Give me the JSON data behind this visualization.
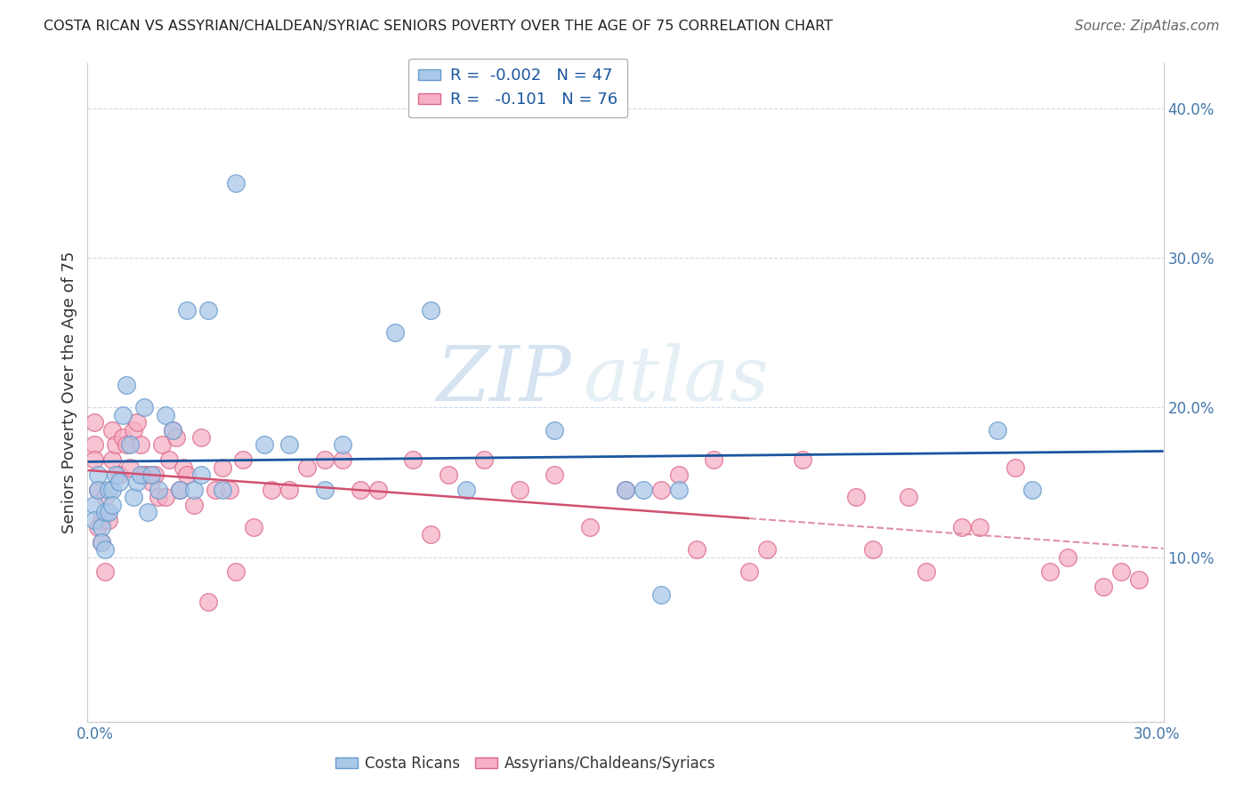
{
  "title": "COSTA RICAN VS ASSYRIAN/CHALDEAN/SYRIAC SENIORS POVERTY OVER THE AGE OF 75 CORRELATION CHART",
  "source": "Source: ZipAtlas.com",
  "ylabel": "Seniors Poverty Over the Age of 75",
  "xlim": [
    -0.002,
    0.302
  ],
  "ylim": [
    -0.01,
    0.43
  ],
  "ytick_positions": [
    0.1,
    0.2,
    0.3,
    0.4
  ],
  "ytick_labels": [
    "10.0%",
    "20.0%",
    "30.0%",
    "40.0%"
  ],
  "xtick_positions": [
    0.0,
    0.3
  ],
  "xtick_labels": [
    "0.0%",
    "30.0%"
  ],
  "legend_text1": "R =  -0.002   N = 47",
  "legend_text2": "R =   -0.101   N = 76",
  "color_blue": "#aac8e8",
  "color_pink": "#f5b0c5",
  "line_blue": "#1a56a0",
  "line_pink": "#d05070",
  "line_pink_dash": "#e090a8",
  "watermark_zip": "ZIP",
  "watermark_atlas": "atlas",
  "grid_color": "#d0d8e8",
  "blue_x": [
    0.0,
    0.0,
    0.001,
    0.001,
    0.002,
    0.002,
    0.003,
    0.003,
    0.004,
    0.004,
    0.005,
    0.005,
    0.006,
    0.007,
    0.008,
    0.009,
    0.01,
    0.011,
    0.012,
    0.013,
    0.014,
    0.015,
    0.016,
    0.018,
    0.02,
    0.022,
    0.024,
    0.026,
    0.028,
    0.03,
    0.032,
    0.036,
    0.04,
    0.048,
    0.055,
    0.065,
    0.07,
    0.085,
    0.095,
    0.105,
    0.13,
    0.15,
    0.155,
    0.16,
    0.165,
    0.255,
    0.265
  ],
  "blue_y": [
    0.135,
    0.125,
    0.155,
    0.145,
    0.12,
    0.11,
    0.13,
    0.105,
    0.13,
    0.145,
    0.145,
    0.135,
    0.155,
    0.15,
    0.195,
    0.215,
    0.175,
    0.14,
    0.15,
    0.155,
    0.2,
    0.13,
    0.155,
    0.145,
    0.195,
    0.185,
    0.145,
    0.265,
    0.145,
    0.155,
    0.265,
    0.145,
    0.35,
    0.175,
    0.175,
    0.145,
    0.175,
    0.25,
    0.265,
    0.145,
    0.185,
    0.145,
    0.145,
    0.075,
    0.145,
    0.185,
    0.145
  ],
  "pink_x": [
    0.0,
    0.0,
    0.0,
    0.001,
    0.001,
    0.002,
    0.002,
    0.003,
    0.003,
    0.004,
    0.005,
    0.005,
    0.006,
    0.007,
    0.008,
    0.009,
    0.01,
    0.011,
    0.012,
    0.013,
    0.014,
    0.015,
    0.016,
    0.017,
    0.018,
    0.019,
    0.02,
    0.021,
    0.022,
    0.023,
    0.024,
    0.025,
    0.026,
    0.028,
    0.03,
    0.032,
    0.034,
    0.036,
    0.038,
    0.04,
    0.042,
    0.045,
    0.05,
    0.055,
    0.06,
    0.065,
    0.07,
    0.075,
    0.08,
    0.09,
    0.095,
    0.1,
    0.11,
    0.12,
    0.13,
    0.14,
    0.15,
    0.16,
    0.165,
    0.17,
    0.175,
    0.185,
    0.19,
    0.2,
    0.215,
    0.22,
    0.23,
    0.235,
    0.245,
    0.25,
    0.26,
    0.27,
    0.275,
    0.285,
    0.29,
    0.295
  ],
  "pink_y": [
    0.19,
    0.175,
    0.165,
    0.145,
    0.12,
    0.125,
    0.11,
    0.14,
    0.09,
    0.125,
    0.185,
    0.165,
    0.175,
    0.155,
    0.18,
    0.175,
    0.16,
    0.185,
    0.19,
    0.175,
    0.155,
    0.155,
    0.15,
    0.155,
    0.14,
    0.175,
    0.14,
    0.165,
    0.185,
    0.18,
    0.145,
    0.16,
    0.155,
    0.135,
    0.18,
    0.07,
    0.145,
    0.16,
    0.145,
    0.09,
    0.165,
    0.12,
    0.145,
    0.145,
    0.16,
    0.165,
    0.165,
    0.145,
    0.145,
    0.165,
    0.115,
    0.155,
    0.165,
    0.145,
    0.155,
    0.12,
    0.145,
    0.145,
    0.155,
    0.105,
    0.165,
    0.09,
    0.105,
    0.165,
    0.14,
    0.105,
    0.14,
    0.09,
    0.12,
    0.12,
    0.16,
    0.09,
    0.1,
    0.08,
    0.09,
    0.085
  ],
  "blue_line_y_intercept": 0.143,
  "blue_line_slope": -0.002,
  "pink_line_y_start": 0.122,
  "pink_line_slope": -0.1
}
